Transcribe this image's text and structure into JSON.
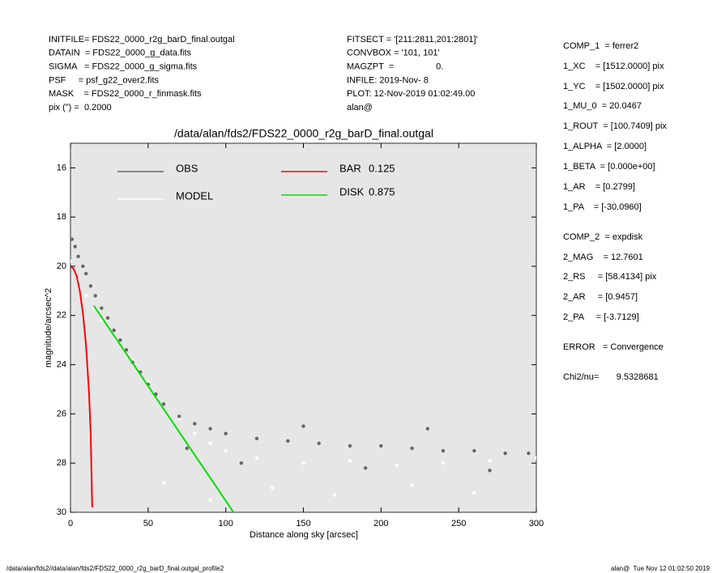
{
  "header": {
    "left": [
      "INITFILE= FDS22_0000_r2g_barD_final.outgal",
      "DATAIN  = FDS22_0000_g_data.fits",
      "SIGMA   = FDS22_0000_g_sigma.fits",
      "PSF     = psf_g22_over2.fits",
      "MASK    = FDS22_0000_r_finmask.fits",
      "pix (\") =  0.2000"
    ],
    "middle": [
      "FITSECT = '[211:2811,201:2801]'",
      "CONVBOX = '101, 101'",
      "MAGZPT  =                 0.",
      "INFILE: 2019-Nov- 8",
      "PLOT: 12-Nov-2019 01:02:49.00",
      "alan@"
    ]
  },
  "params": [
    "COMP_1  = ferrer2",
    "1_XC    = [1512.0000] pix",
    "1_YC    = [1502.0000] pix",
    "1_MU_0  = 20.0467",
    "1_ROUT  = [100.7409] pix",
    "1_ALPHA  = [2.0000]",
    "1_BETA  = [0.000e+00]",
    "1_AR    = [0.2799]",
    "1_PA    = [-30.0960]",
    "COMP_2  = expdisk",
    "2_MAG    = 12.7601",
    "2_RS     = [58.4134] pix",
    "2_AR     = [0.9457]",
    "2_PA     = [-3.7129]",
    "ERROR   = Convergence",
    "Chi2/nu=       9.5328681"
  ],
  "footer": {
    "left": "/data/alan/fds2//data/alan/fds2/FDS22_0000_r2g_barD_final.outgal_profile2",
    "right": "alan@  Tue Nov 12 01:02:50 2019"
  },
  "chart_data": {
    "type": "scatter",
    "title": "/data/alan/fds2/FDS22_0000_r2g_barD_final.outgal",
    "x_label": "Distance along sky [arcsec]",
    "y_label": "magnitude/arcsec^2",
    "xlim": [
      0,
      300
    ],
    "xticks": [
      0,
      50,
      100,
      150,
      200,
      250,
      300
    ],
    "ylim": [
      30,
      15
    ],
    "yticks": [
      16,
      18,
      20,
      22,
      24,
      26,
      28,
      30
    ],
    "series": [
      {
        "name": "MODEL",
        "color": "#ffffff",
        "style": "points",
        "x": [
          0,
          5,
          10,
          15,
          20,
          30,
          40,
          50,
          60,
          70,
          80,
          90,
          100,
          120,
          150,
          180,
          210,
          240,
          270,
          300,
          60,
          90,
          130,
          170,
          220,
          260
        ],
        "values": [
          19.8,
          20.6,
          21.2,
          21.7,
          22.2,
          23.0,
          23.8,
          24.7,
          25.6,
          26.2,
          26.8,
          27.2,
          27.5,
          27.8,
          28.0,
          27.9,
          28.1,
          28.0,
          27.9,
          27.8,
          28.8,
          29.5,
          29.0,
          29.3,
          28.9,
          29.2
        ]
      },
      {
        "name": "OBS",
        "color": "#666666",
        "style": "points",
        "x": [
          1,
          3,
          5,
          8,
          10,
          13,
          16,
          20,
          24,
          28,
          32,
          36,
          40,
          45,
          50,
          55,
          60,
          70,
          80,
          90,
          100,
          120,
          140,
          160,
          180,
          200,
          220,
          240,
          260,
          280,
          295,
          75,
          110,
          150,
          190,
          230,
          270
        ],
        "values": [
          18.9,
          19.2,
          19.6,
          20.0,
          20.3,
          20.8,
          21.2,
          21.7,
          22.1,
          22.6,
          23.0,
          23.4,
          23.9,
          24.3,
          24.8,
          25.2,
          25.6,
          26.1,
          26.4,
          26.6,
          26.8,
          27.0,
          27.1,
          27.2,
          27.3,
          27.3,
          27.4,
          27.5,
          27.5,
          27.6,
          27.6,
          27.4,
          28.0,
          26.5,
          28.2,
          26.6,
          28.3
        ]
      },
      {
        "name": "BAR",
        "fraction": 0.125,
        "color": "#ff0000",
        "style": "line",
        "x": [
          0,
          2,
          4,
          6,
          8,
          10,
          12,
          13,
          14
        ],
        "values": [
          20.0,
          20.1,
          20.4,
          21.0,
          21.9,
          23.2,
          25.2,
          26.8,
          29.8
        ]
      },
      {
        "name": "DISK",
        "fraction": 0.875,
        "color": "#00dd00",
        "style": "line",
        "x": [
          15,
          30,
          45,
          60,
          75,
          90,
          105
        ],
        "values": [
          21.6,
          23.0,
          24.4,
          25.8,
          27.2,
          28.6,
          30.0
        ]
      }
    ]
  }
}
